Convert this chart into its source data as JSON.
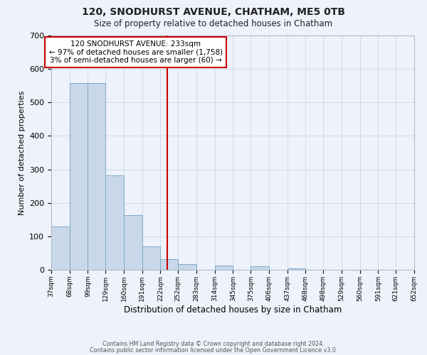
{
  "title": "120, SNODHURST AVENUE, CHATHAM, ME5 0TB",
  "subtitle": "Size of property relative to detached houses in Chatham",
  "xlabel": "Distribution of detached houses by size in Chatham",
  "ylabel": "Number of detached properties",
  "bar_left_edges": [
    37,
    68,
    99,
    129,
    160,
    191,
    222,
    252,
    283,
    314,
    345,
    375,
    406,
    437,
    468,
    498,
    529,
    560,
    591,
    621
  ],
  "bar_widths": [
    31,
    31,
    30,
    31,
    31,
    31,
    30,
    31,
    31,
    31,
    30,
    31,
    31,
    31,
    30,
    31,
    31,
    31,
    30,
    31
  ],
  "bar_heights": [
    130,
    557,
    557,
    283,
    163,
    70,
    32,
    18,
    0,
    13,
    0,
    10,
    0,
    5,
    0,
    0,
    0,
    0,
    0,
    0
  ],
  "tick_labels": [
    "37sqm",
    "68sqm",
    "99sqm",
    "129sqm",
    "160sqm",
    "191sqm",
    "222sqm",
    "252sqm",
    "283sqm",
    "314sqm",
    "345sqm",
    "375sqm",
    "406sqm",
    "437sqm",
    "468sqm",
    "498sqm",
    "529sqm",
    "560sqm",
    "591sqm",
    "621sqm",
    "652sqm"
  ],
  "bar_color": "#c8d8e8",
  "bar_edge_color": "#7faac8",
  "vline_x": 233,
  "vline_color": "#cc0000",
  "ylim": [
    0,
    700
  ],
  "yticks": [
    0,
    100,
    200,
    300,
    400,
    500,
    600,
    700
  ],
  "annotation_title": "120 SNODHURST AVENUE: 233sqm",
  "annotation_line1": "← 97% of detached houses are smaller (1,758)",
  "annotation_line2": "3% of semi-detached houses are larger (60) →",
  "annotation_box_color": "#ffffff",
  "annotation_box_edge": "#cc0000",
  "grid_color": "#d0dcea",
  "background_color": "#eef2fa",
  "footer1": "Contains HM Land Registry data © Crown copyright and database right 2024.",
  "footer2": "Contains public sector information licensed under the Open Government Licence v3.0."
}
